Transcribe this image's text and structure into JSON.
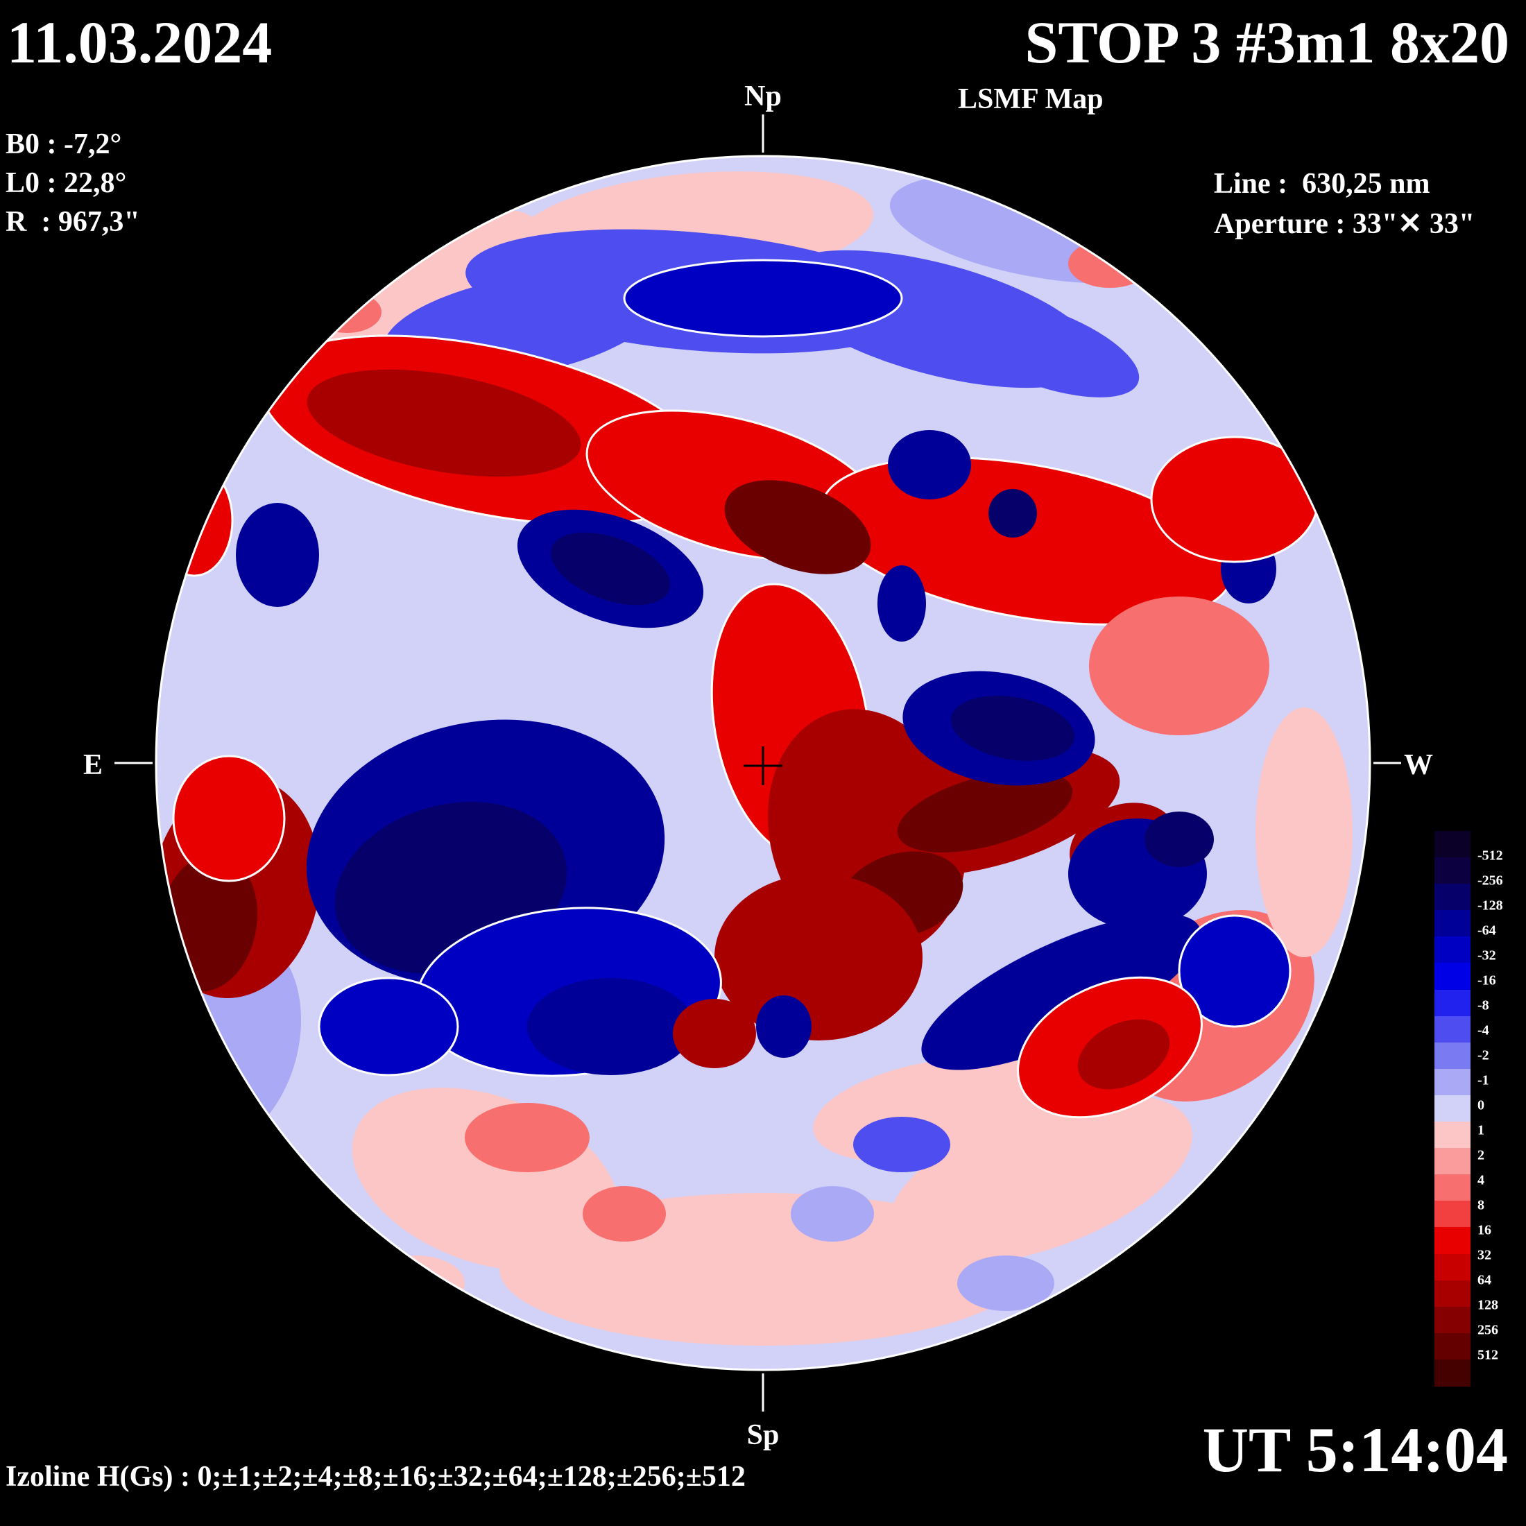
{
  "header": {
    "date": "11.03.2024",
    "title": "STOP 3 #3m1 8x20",
    "subtitle": "LSMF  Map"
  },
  "params": [
    "B0 : -7,2°",
    "L0 : 22,8°",
    "R  : 967,3\""
  ],
  "line_info": [
    "Line :  630,25 nm",
    "Aperture : 33\"✕ 33\""
  ],
  "directions": {
    "north": "Np",
    "south": "Sp",
    "east": "E",
    "west": "W"
  },
  "time": "UT 5:14:04",
  "izoline": "Izoline H(Gs) : 0;±1;±2;±4;±8;±16;±32;±64;±128;±256;±512",
  "colorbar": {
    "labels": [
      "-512",
      "-256",
      "-128",
      "-64",
      "-32",
      "-16",
      "-8",
      "-4",
      "-2",
      "-1",
      "0",
      "1",
      "2",
      "4",
      "8",
      "16",
      "32",
      "64",
      "128",
      "256",
      "512"
    ],
    "colors": [
      "#0a0028",
      "#0d0040",
      "#06006b",
      "#000099",
      "#0000c2",
      "#0000e6",
      "#2222ee",
      "#4e4ef0",
      "#7a7af2",
      "#a9a9f5",
      "#d2d2f8",
      "#fcc6c6",
      "#fb9c9c",
      "#f86f6f",
      "#f24040",
      "#e80000",
      "#c80000",
      "#a80000",
      "#850000",
      "#640000",
      "#450000"
    ]
  },
  "map_colors": {
    "disk_background": "#d2d2f8",
    "positive": [
      "#fcc6c6",
      "#f86f6f",
      "#e80000",
      "#a80000",
      "#6a0000"
    ],
    "negative": [
      "#a9a9f5",
      "#4e4ef0",
      "#0000c2",
      "#000099",
      "#06006b"
    ]
  }
}
